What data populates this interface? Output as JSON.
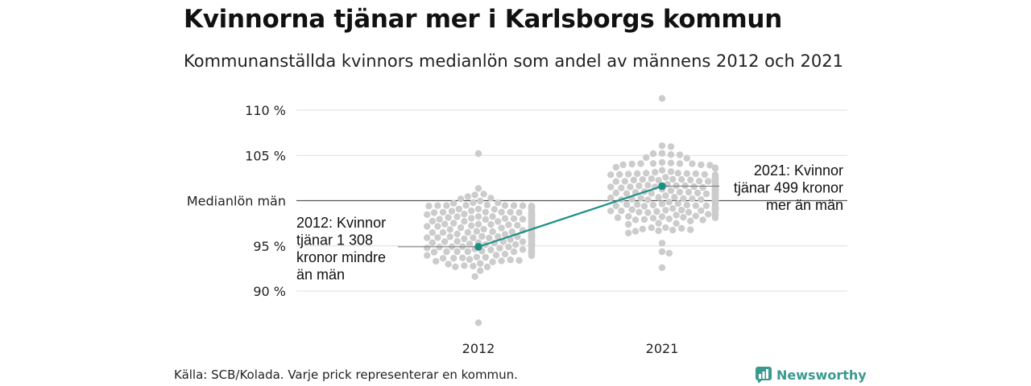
{
  "header": {
    "title": "Kvinnorna tjänar mer i Karlsborgs kommun",
    "subtitle": "Kommunanställda kvinnors medianlön som andel av männens 2012 och 2021"
  },
  "footer": {
    "source": "Källa: SCB/Kolada. Varje prick representerar en kommun.",
    "brand": "Newsworthy"
  },
  "colors": {
    "dots": "#cccccc",
    "highlight": "#1a8f84",
    "reference": "#555555",
    "grid": "#dddddd",
    "brand": "#3a9a8f"
  },
  "chart_data": {
    "type": "scatter",
    "subtype": "beeswarm",
    "title": "Kvinnorna tjänar mer i Karlsborgs kommun",
    "subtitle": "Kommunanställda kvinnors medianlön som andel av männens 2012 och 2021",
    "categories": [
      "2012",
      "2021"
    ],
    "ylim": [
      87,
      112
    ],
    "yticks": [
      {
        "value": 90,
        "label": "90 %"
      },
      {
        "value": 95,
        "label": "95 %"
      },
      {
        "value": 100,
        "label": "Medianlön män"
      },
      {
        "value": 105,
        "label": "105 %"
      },
      {
        "value": 110,
        "label": "110 %"
      }
    ],
    "distributions": [
      {
        "category": "2012",
        "min": 86.5,
        "max": 105.2,
        "median": 96.6,
        "spread": 1.9
      },
      {
        "category": "2021",
        "min": 92.6,
        "max": 111.3,
        "median": 100.8,
        "spread": 1.9
      }
    ],
    "highlight": {
      "name": "Karlsborg",
      "points": [
        {
          "x": "2012",
          "y": 94.9
        },
        {
          "x": "2021",
          "y": 101.6
        }
      ]
    },
    "annotations": [
      {
        "category": "2012",
        "side": "left",
        "lines": [
          "2012: Kvinnor",
          "tjänar 1 308",
          "kronor mindre",
          "än män"
        ]
      },
      {
        "category": "2021",
        "side": "right",
        "lines": [
          "2021: Kvinnor",
          "tjänar 499 kronor",
          "mer än män"
        ]
      }
    ],
    "grid": true,
    "legend": "none"
  }
}
